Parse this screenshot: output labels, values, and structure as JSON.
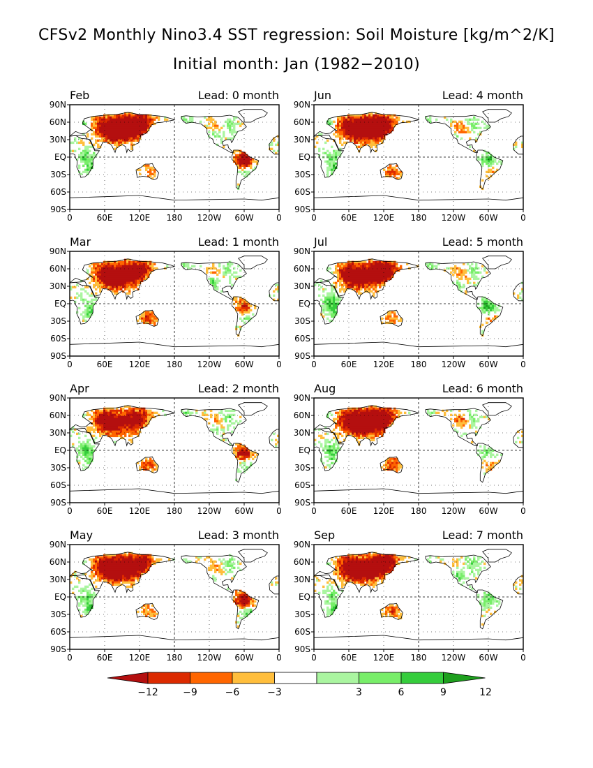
{
  "title_line1": "CFSv2 Monthly Nino3.4 SST regression: Soil Moisture [kg/m^2/K]",
  "title_line2": "Initial month: Jan (1982−2010)",
  "chart_data": {
    "type": "heatmap",
    "grid": true,
    "x_ticks": [
      "0",
      "60E",
      "120E",
      "180",
      "120W",
      "60W",
      "0"
    ],
    "y_ticks": [
      "90N",
      "60N",
      "30N",
      "EQ",
      "30S",
      "60S",
      "90S"
    ],
    "xlim": [
      0,
      360
    ],
    "ylim": [
      -90,
      90
    ],
    "panels": [
      {
        "month": "Feb",
        "lead": "Lead: 0 month",
        "col": 0,
        "row": 0
      },
      {
        "month": "Jun",
        "lead": "Lead: 4 month",
        "col": 1,
        "row": 0
      },
      {
        "month": "Mar",
        "lead": "Lead: 1 month",
        "col": 0,
        "row": 1
      },
      {
        "month": "Jul",
        "lead": "Lead: 5 month",
        "col": 1,
        "row": 1
      },
      {
        "month": "Apr",
        "lead": "Lead: 2 month",
        "col": 0,
        "row": 2
      },
      {
        "month": "Aug",
        "lead": "Lead: 6 month",
        "col": 1,
        "row": 2
      },
      {
        "month": "May",
        "lead": "Lead: 3 month",
        "col": 0,
        "row": 3
      },
      {
        "month": "Sep",
        "lead": "Lead: 7 month",
        "col": 1,
        "row": 3
      }
    ],
    "colorbar": {
      "levels": [
        "−12",
        "−9",
        "−6",
        "−3",
        "3",
        "6",
        "9",
        "12"
      ],
      "colors": [
        "#b40f0f",
        "#dc2a00",
        "#ff6600",
        "#ffbe3c",
        "#ffffff",
        "#aaf5a0",
        "#78ee69",
        "#35cd3c",
        "#1ea01e"
      ]
    }
  }
}
